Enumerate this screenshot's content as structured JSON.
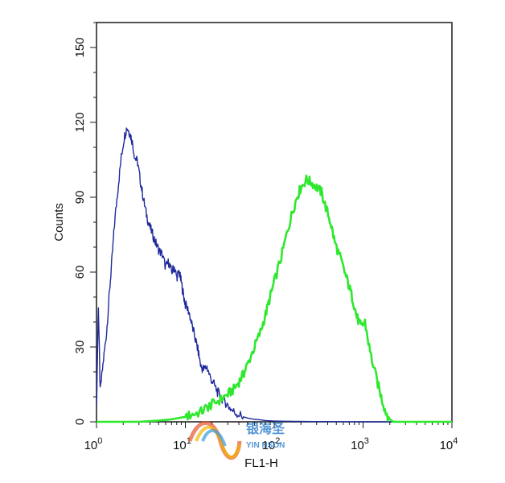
{
  "chart_data": {
    "type": "histogram",
    "xlabel": "FL1-H",
    "ylabel": "Counts",
    "x_scale": "log",
    "xlim": [
      1,
      10000
    ],
    "ylim": [
      0,
      160
    ],
    "x_ticks": [
      {
        "value": 1,
        "base": "10",
        "exp": "0"
      },
      {
        "value": 10,
        "base": "10",
        "exp": "1"
      },
      {
        "value": 100,
        "base": "10",
        "exp": "2"
      },
      {
        "value": 1000,
        "base": "10",
        "exp": "3"
      },
      {
        "value": 10000,
        "base": "10",
        "exp": "4"
      }
    ],
    "y_ticks": [
      "0",
      "30",
      "60",
      "90",
      "120",
      "150"
    ],
    "series": [
      {
        "color": "#1f2a9c",
        "x": [
          1.0,
          1.05,
          1.1,
          1.2,
          1.3,
          1.4,
          1.5,
          1.6,
          1.75,
          1.9,
          2.05,
          2.2,
          2.35,
          2.5,
          2.7,
          2.9,
          3.1,
          3.35,
          3.6,
          3.9,
          4.2,
          4.6,
          5.0,
          5.5,
          6.0,
          6.5,
          7.0,
          7.5,
          8.0,
          8.5,
          9.0,
          9.5,
          10.0,
          11.0,
          12.0,
          13.0,
          14.0,
          15.0,
          16.0,
          17.5,
          19.0,
          21.0,
          23.0,
          25.0,
          28.0,
          31.0,
          35.0,
          40.0,
          45.0,
          50.0,
          60.0,
          70.0,
          80.0,
          100.0,
          150.0,
          300.0,
          1000.0,
          3000.0,
          10000.0
        ],
        "y": [
          5,
          47,
          12,
          25,
          36,
          52,
          66,
          80,
          94,
          106,
          114,
          118,
          116,
          113,
          106,
          104,
          97,
          90,
          84,
          79,
          76,
          72,
          69,
          67,
          62,
          64,
          60,
          62,
          58,
          60,
          56,
          51,
          47,
          44,
          38,
          33,
          28,
          22,
          21,
          22,
          18,
          15,
          12,
          10,
          8,
          6,
          4,
          3,
          2,
          1.5,
          1,
          0.8,
          0.5,
          0.3,
          0.2,
          0.1,
          0,
          0,
          0
        ]
      },
      {
        "color": "#2ee82e",
        "x": [
          1.0,
          3.0,
          5.0,
          7.0,
          10.0,
          12.0,
          15.0,
          18.0,
          20.0,
          25.0,
          30.0,
          35.0,
          40.0,
          45.0,
          50.0,
          60.0,
          70.0,
          80.0,
          90.0,
          100.0,
          120.0,
          140.0,
          160.0,
          180.0,
          200.0,
          230.0,
          260.0,
          300.0,
          340.0,
          380.0,
          430.0,
          480.0,
          550.0,
          620.0,
          700.0,
          780.0,
          850.0,
          950.0,
          1050.0,
          1200.0,
          1400.0,
          1600.0,
          1800.0,
          2000.0,
          2200.0,
          3000.0,
          10000.0
        ],
        "y": [
          0,
          0,
          0.5,
          1,
          2,
          3,
          4,
          6,
          7,
          9,
          11,
          13,
          16,
          19,
          23,
          30,
          36,
          43,
          50,
          56,
          66,
          76,
          84,
          90,
          94,
          97,
          96,
          94,
          92,
          86,
          80,
          72,
          66,
          60,
          54,
          48,
          42,
          38,
          40,
          28,
          18,
          10,
          4,
          1,
          0,
          0,
          0
        ]
      }
    ],
    "grid": false,
    "legend": "none"
  },
  "watermark": {
    "text_cn": "银海圣",
    "text_en": "YIN HSON"
  }
}
